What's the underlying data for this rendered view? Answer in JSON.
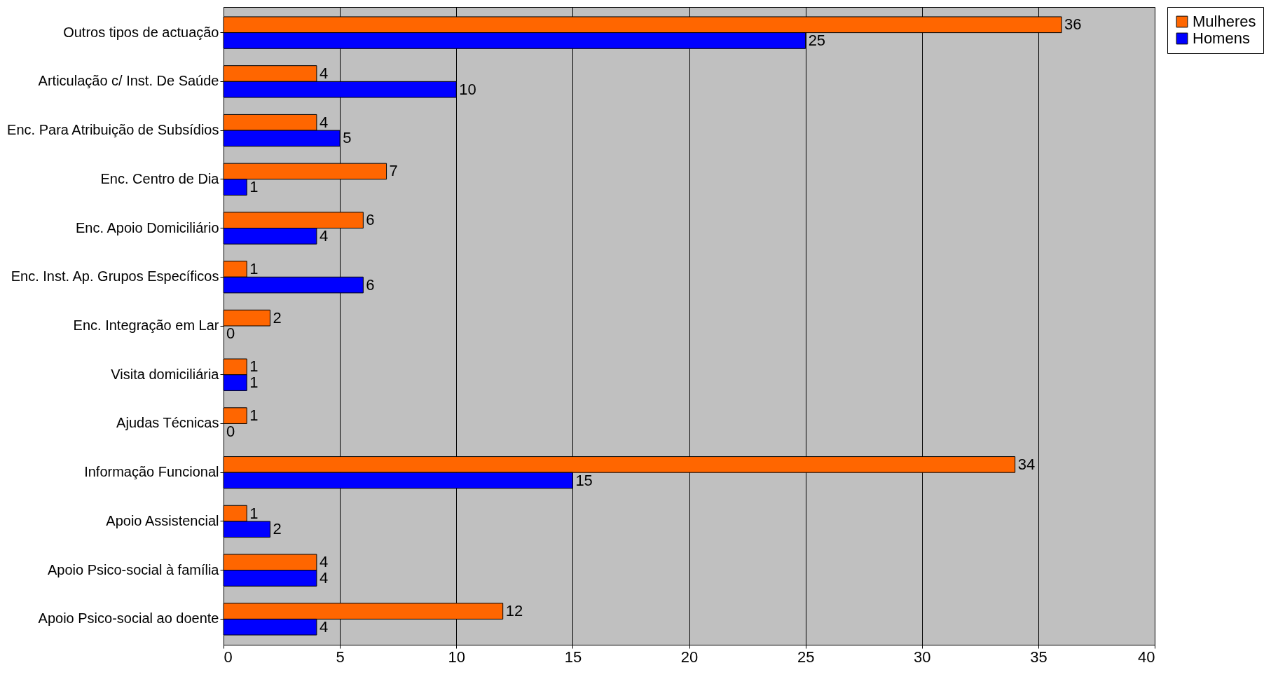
{
  "chart_data": {
    "type": "bar",
    "orientation": "horizontal",
    "categories": [
      "Outros tipos de actuação",
      "Articulação c/ Inst. De Saúde",
      "Enc. Para Atribuição de Subsídios",
      "Enc. Centro de Dia",
      "Enc. Apoio Domiciliário",
      "Enc. Inst. Ap. Grupos Específicos",
      "Enc. Integração em Lar",
      "Visita domiciliária",
      "Ajudas Técnicas",
      "Informação Funcional",
      "Apoio Assistencial",
      "Apoio Psico-social à família",
      "Apoio Psico-social ao doente"
    ],
    "series": [
      {
        "name": "Mulheres",
        "color": "#ff6600",
        "values": [
          36,
          4,
          4,
          7,
          6,
          1,
          2,
          1,
          1,
          34,
          1,
          4,
          12
        ]
      },
      {
        "name": "Homens",
        "color": "#0000ff",
        "values": [
          25,
          10,
          5,
          1,
          4,
          6,
          0,
          1,
          0,
          15,
          2,
          4,
          4
        ]
      }
    ],
    "xlim": [
      0,
      40
    ],
    "xticks": [
      0,
      5,
      10,
      15,
      20,
      25,
      30,
      35,
      40
    ],
    "grid": "x",
    "legend": "right",
    "data_labels": true
  }
}
